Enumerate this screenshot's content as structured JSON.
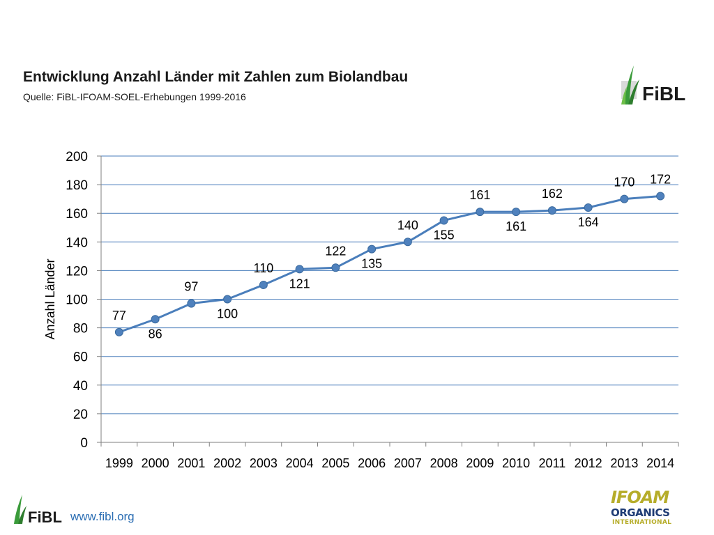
{
  "slide": {
    "title": "Entwicklung Anzahl Länder mit Zahlen zum Biolandbau",
    "subtitle": "Quelle: FiBL-IFOAM-SOEL-Erhebungen 1999-2016"
  },
  "logos": {
    "fibl_text": "FiBL",
    "ifoam_line1": "IFOAM",
    "ifoam_line2": "ORGANICS",
    "ifoam_line3": "INTERNATIONAL"
  },
  "footer": {
    "url": "www.fibl.org"
  },
  "colors": {
    "line": "#4a7ebb",
    "marker": "#4f81bd",
    "marker_stroke": "#3a6a9e",
    "grid": "#4a7ebb",
    "fibl_green": "#3a9b3a"
  },
  "chart_data": {
    "type": "line",
    "categories": [
      "1999",
      "2000",
      "2001",
      "2002",
      "2003",
      "2004",
      "2005",
      "2006",
      "2007",
      "2008",
      "2009",
      "2010",
      "2011",
      "2012",
      "2013",
      "2014"
    ],
    "series": [
      {
        "values": [
          77,
          86,
          97,
          100,
          110,
          121,
          122,
          135,
          140,
          155,
          161,
          161,
          162,
          164,
          170,
          172
        ]
      }
    ],
    "title": "",
    "xlabel": "",
    "ylabel": "Anzahl Länder",
    "ylim": [
      0,
      200
    ],
    "yticks": [
      0,
      20,
      40,
      60,
      80,
      100,
      120,
      140,
      160,
      180,
      200
    ],
    "grid": true,
    "data_labels": true,
    "data_label_positions": [
      "above",
      "below",
      "above",
      "below",
      "above",
      "below",
      "above",
      "below",
      "above",
      "below",
      "above",
      "below",
      "above",
      "below",
      "above",
      "above"
    ],
    "legend": "none"
  }
}
